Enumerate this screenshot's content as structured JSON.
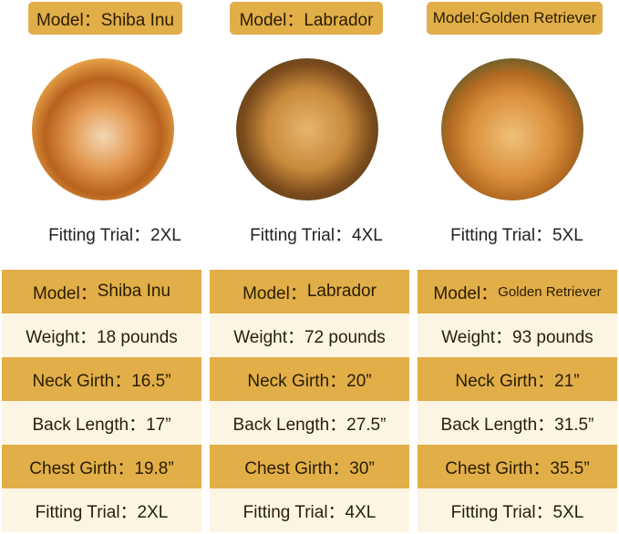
{
  "colors": {
    "gold": "#E1AE48",
    "cream": "#FDF5E3"
  },
  "dogs": [
    {
      "tag": "Model：Shiba Inu",
      "photo": "shiba-inu-photo",
      "trial": "Fitting Trial：2XL",
      "table": {
        "model_label": "Model：",
        "model": "Shiba Inu",
        "weight": "Weight：18 pounds",
        "neck": "Neck Girth：16.5”",
        "back": "Back Length：17”",
        "chest": "Chest Girth：19.8”",
        "trial": "Fitting Trial：2XL"
      }
    },
    {
      "tag": "Model：Labrador",
      "photo": "labrador-photo",
      "trial": "Fitting Trial：4XL",
      "table": {
        "model_label": "Model：",
        "model": "Labrador",
        "weight": "Weight：72 pounds",
        "neck": "Neck Girth：20”",
        "back": "Back Length：27.5”",
        "chest": "Chest Girth：30”",
        "trial": "Fitting Trial：4XL"
      }
    },
    {
      "tag": "Model:Golden Retriever",
      "photo": "golden-retriever-photo",
      "trial": "Fitting Trial：5XL",
      "table": {
        "model_label": "Model：",
        "model": "Golden Retriever",
        "weight": "Weight：93 pounds",
        "neck": "Neck Girth：21”",
        "back": "Back Length：31.5”",
        "chest": "Chest Girth：35.5”",
        "trial": "Fitting Trial：5XL"
      }
    }
  ]
}
